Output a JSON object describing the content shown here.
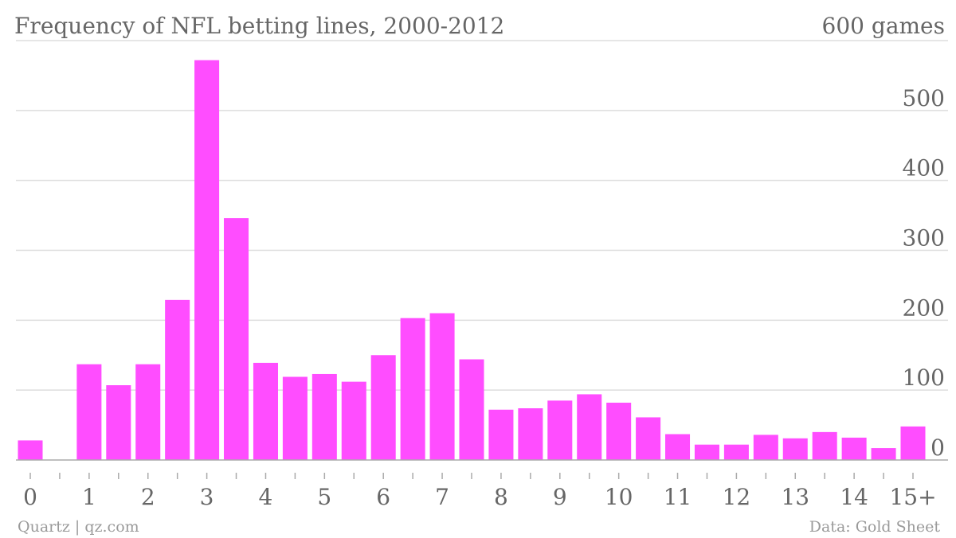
{
  "title": "Frequency of NFL betting lines, 2000-2012",
  "footer": {
    "source_left": "Quartz | qz.com",
    "source_right": "Data: Gold Sheet"
  },
  "colors": {
    "bar": "#ff4dff",
    "grid": "#dddddd",
    "text": "#666666",
    "axis": "#aaaaaa"
  },
  "chart_data": {
    "type": "bar",
    "ylim": [
      0,
      600
    ],
    "y_ticks": [
      0,
      100,
      200,
      300,
      400,
      500,
      600
    ],
    "y_tick_labels": [
      "0",
      "100",
      "200",
      "300",
      "400",
      "500",
      "600 games"
    ],
    "x_range": [
      0,
      15
    ],
    "x_ticks": [
      0,
      1,
      2,
      3,
      4,
      5,
      6,
      7,
      8,
      9,
      10,
      11,
      12,
      13,
      14,
      15
    ],
    "x_tick_labels": [
      "0",
      "1",
      "2",
      "3",
      "4",
      "5",
      "6",
      "7",
      "8",
      "9",
      "10",
      "11",
      "12",
      "13",
      "14",
      "15+"
    ],
    "x": [
      0,
      1,
      1.5,
      2,
      2.5,
      3,
      3.5,
      4,
      4.5,
      5,
      5.5,
      6,
      6.5,
      7,
      7.5,
      8,
      8.5,
      9,
      9.5,
      10,
      10.5,
      11,
      11.5,
      12,
      12.5,
      13,
      13.5,
      14,
      14.5,
      15
    ],
    "values": [
      28,
      137,
      107,
      137,
      229,
      572,
      346,
      139,
      119,
      123,
      112,
      150,
      203,
      210,
      144,
      72,
      74,
      85,
      94,
      82,
      61,
      37,
      22,
      22,
      36,
      31,
      40,
      32,
      17,
      48
    ],
    "grid": true,
    "legend": "none"
  }
}
